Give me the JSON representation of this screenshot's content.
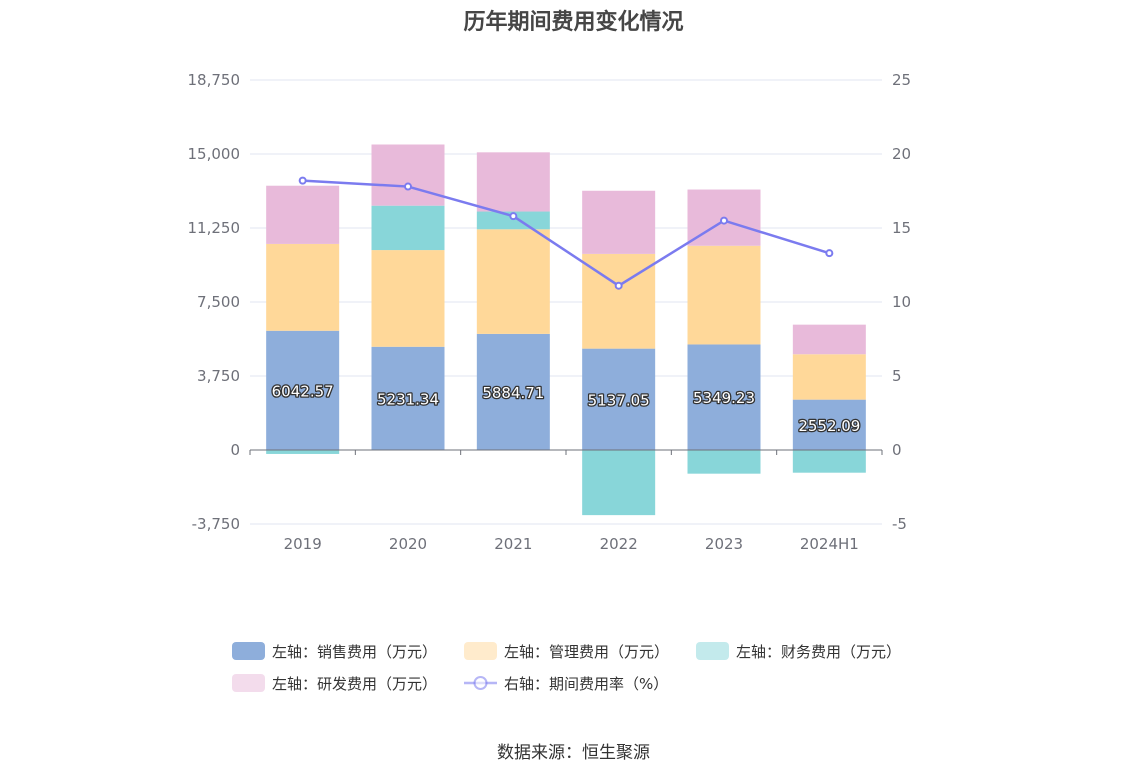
{
  "title": "历年期间费用变化情况",
  "source": "数据来源：恒生聚源",
  "chart_data": {
    "type": "bar",
    "stacked": true,
    "categories": [
      "2019",
      "2020",
      "2021",
      "2022",
      "2023",
      "2024H1"
    ],
    "left_axis": {
      "min": -3750,
      "max": 18750,
      "ticks": [
        "-3,750",
        "0",
        "3,750",
        "7,500",
        "11,250",
        "15,000",
        "18,750"
      ]
    },
    "right_axis": {
      "min": -5,
      "max": 25,
      "ticks": [
        "-5",
        "0",
        "5",
        "10",
        "15",
        "20",
        "25"
      ]
    },
    "series": [
      {
        "name": "左轴：销售费用（万元）",
        "axis": "left",
        "color": "#8eaedb",
        "values": [
          6042.57,
          5231.34,
          5884.71,
          5137.05,
          5349.23,
          2552.09
        ],
        "labels": [
          "6042.57",
          "5231.34",
          "5884.71",
          "5137.05",
          "5349.23",
          "2552.09"
        ]
      },
      {
        "name": "左轴：管理费用（万元）",
        "axis": "left",
        "color": "#ffd899",
        "values": [
          4400,
          4900,
          5300,
          4800,
          5000,
          2300
        ]
      },
      {
        "name": "左轴：财务费用（万元）",
        "axis": "left",
        "color": "#88d6d9",
        "values": [
          -200,
          2250,
          900,
          -3300,
          -1200,
          -1150
        ]
      },
      {
        "name": "左轴：研发费用（万元）",
        "axis": "left",
        "color": "#e8bada",
        "values": [
          2950,
          3100,
          3000,
          3200,
          2850,
          1500
        ]
      },
      {
        "name": "右轴：期间费用率（%）",
        "axis": "right",
        "type": "line",
        "color": "#7b7bef",
        "values": [
          18.2,
          17.8,
          15.8,
          11.1,
          15.5,
          13.3
        ]
      }
    ],
    "grid": true,
    "legend": "bottom"
  }
}
